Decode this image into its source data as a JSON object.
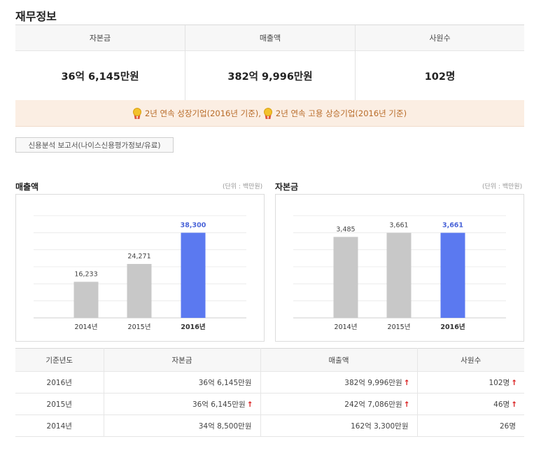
{
  "page_title": "재무정보",
  "summary": {
    "capital_label": "자본금",
    "capital_value": "36억 6,145만원",
    "sales_label": "매출액",
    "sales_value": "382억 9,996만원",
    "employees_label": "사원수",
    "employees_value": "102명"
  },
  "banner": {
    "award1": "2년 연속 성장기업(2016년 기준),",
    "award2": "2년 연속 고용 상승기업(2016년 기준)"
  },
  "report_button": "신용분석 보고서(나이스신용평가정보/유료)",
  "charts": {
    "sales_title": "매출액",
    "capital_title": "자본금",
    "unit": "(단위 : 백만원)"
  },
  "chart_data": [
    {
      "type": "bar",
      "title": "매출액",
      "unit": "(단위 : 백만원)",
      "categories": [
        "2014년",
        "2015년",
        "2016년"
      ],
      "values": [
        16233,
        24271,
        38300
      ],
      "value_labels": [
        "16,233",
        "24,271",
        "38,300"
      ],
      "highlight_index": 2,
      "ylim": [
        0,
        46000
      ],
      "grid": true,
      "colors": {
        "normal": "#c8c8c8",
        "highlight": "#5b79f0",
        "highlight_label": "#4a64d8"
      }
    },
    {
      "type": "bar",
      "title": "자본금",
      "unit": "(단위 : 백만원)",
      "categories": [
        "2014년",
        "2015년",
        "2016년"
      ],
      "values": [
        3485,
        3661,
        3661
      ],
      "value_labels": [
        "3,485",
        "3,661",
        "3,661"
      ],
      "highlight_index": 2,
      "ylim": [
        0,
        4400
      ],
      "grid": true,
      "colors": {
        "normal": "#c8c8c8",
        "highlight": "#5b79f0",
        "highlight_label": "#4a64d8"
      }
    }
  ],
  "table": {
    "headers": [
      "기준년도",
      "자본금",
      "매출액",
      "사원수"
    ],
    "rows": [
      {
        "year": "2016년",
        "capital": "36억 6,145만원",
        "capital_up": "",
        "sales": "382억 9,996만원",
        "sales_up": "↑",
        "emp": "102명",
        "emp_up": "↑"
      },
      {
        "year": "2015년",
        "capital": "36억 6,145만원",
        "capital_up": "↑",
        "sales": "242억 7,086만원",
        "sales_up": "↑",
        "emp": "46명",
        "emp_up": "↑"
      },
      {
        "year": "2014년",
        "capital": "34억 8,500만원",
        "capital_up": "",
        "sales": "162억 3,300만원",
        "sales_up": "",
        "emp": "26명",
        "emp_up": ""
      }
    ]
  },
  "accent_color": "#5b79f0",
  "up_arrow_color": "#d91a1a"
}
